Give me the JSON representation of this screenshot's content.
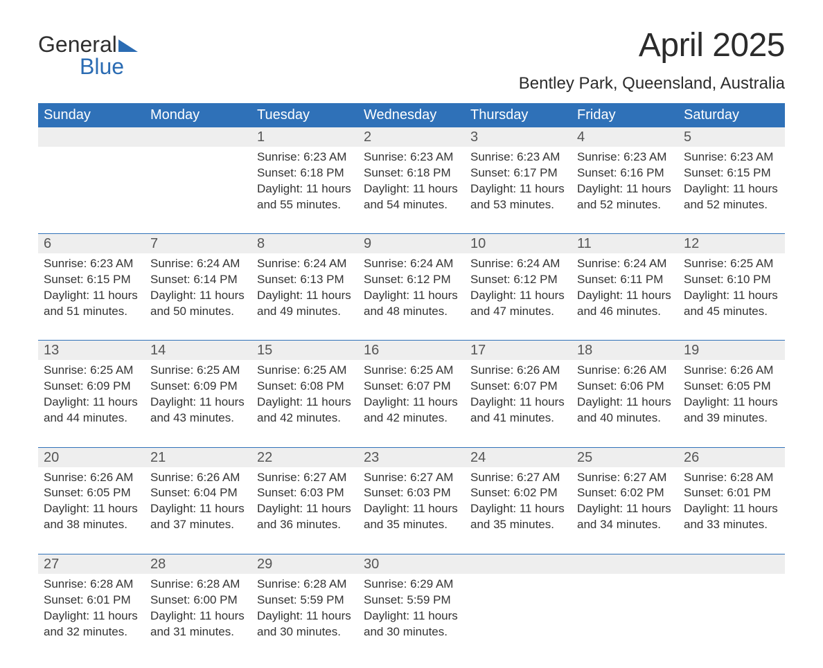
{
  "logo": {
    "word1": "General",
    "word2": "Blue"
  },
  "title": "April 2025",
  "location": "Bentley Park, Queensland, Australia",
  "colors": {
    "header_bg": "#2f71b8",
    "header_fg": "#ffffff",
    "daynum_bg": "#eeeeee",
    "daynum_fg": "#555555",
    "rule": "#2f71b8",
    "text": "#333333",
    "logo_blue": "#2b6cb3"
  },
  "fonts": {
    "title_size_pt": 36,
    "location_size_pt": 18,
    "header_size_pt": 15,
    "daynum_size_pt": 15,
    "details_size_pt": 13
  },
  "weekdays": [
    "Sunday",
    "Monday",
    "Tuesday",
    "Wednesday",
    "Thursday",
    "Friday",
    "Saturday"
  ],
  "labels": {
    "sunrise": "Sunrise:",
    "sunset": "Sunset:",
    "daylight_prefix": "Daylight:"
  },
  "weeks": [
    [
      null,
      null,
      {
        "n": "1",
        "sunrise": "6:23 AM",
        "sunset": "6:18 PM",
        "daylight": "11 hours and 55 minutes."
      },
      {
        "n": "2",
        "sunrise": "6:23 AM",
        "sunset": "6:18 PM",
        "daylight": "11 hours and 54 minutes."
      },
      {
        "n": "3",
        "sunrise": "6:23 AM",
        "sunset": "6:17 PM",
        "daylight": "11 hours and 53 minutes."
      },
      {
        "n": "4",
        "sunrise": "6:23 AM",
        "sunset": "6:16 PM",
        "daylight": "11 hours and 52 minutes."
      },
      {
        "n": "5",
        "sunrise": "6:23 AM",
        "sunset": "6:15 PM",
        "daylight": "11 hours and 52 minutes."
      }
    ],
    [
      {
        "n": "6",
        "sunrise": "6:23 AM",
        "sunset": "6:15 PM",
        "daylight": "11 hours and 51 minutes."
      },
      {
        "n": "7",
        "sunrise": "6:24 AM",
        "sunset": "6:14 PM",
        "daylight": "11 hours and 50 minutes."
      },
      {
        "n": "8",
        "sunrise": "6:24 AM",
        "sunset": "6:13 PM",
        "daylight": "11 hours and 49 minutes."
      },
      {
        "n": "9",
        "sunrise": "6:24 AM",
        "sunset": "6:12 PM",
        "daylight": "11 hours and 48 minutes."
      },
      {
        "n": "10",
        "sunrise": "6:24 AM",
        "sunset": "6:12 PM",
        "daylight": "11 hours and 47 minutes."
      },
      {
        "n": "11",
        "sunrise": "6:24 AM",
        "sunset": "6:11 PM",
        "daylight": "11 hours and 46 minutes."
      },
      {
        "n": "12",
        "sunrise": "6:25 AM",
        "sunset": "6:10 PM",
        "daylight": "11 hours and 45 minutes."
      }
    ],
    [
      {
        "n": "13",
        "sunrise": "6:25 AM",
        "sunset": "6:09 PM",
        "daylight": "11 hours and 44 minutes."
      },
      {
        "n": "14",
        "sunrise": "6:25 AM",
        "sunset": "6:09 PM",
        "daylight": "11 hours and 43 minutes."
      },
      {
        "n": "15",
        "sunrise": "6:25 AM",
        "sunset": "6:08 PM",
        "daylight": "11 hours and 42 minutes."
      },
      {
        "n": "16",
        "sunrise": "6:25 AM",
        "sunset": "6:07 PM",
        "daylight": "11 hours and 42 minutes."
      },
      {
        "n": "17",
        "sunrise": "6:26 AM",
        "sunset": "6:07 PM",
        "daylight": "11 hours and 41 minutes."
      },
      {
        "n": "18",
        "sunrise": "6:26 AM",
        "sunset": "6:06 PM",
        "daylight": "11 hours and 40 minutes."
      },
      {
        "n": "19",
        "sunrise": "6:26 AM",
        "sunset": "6:05 PM",
        "daylight": "11 hours and 39 minutes."
      }
    ],
    [
      {
        "n": "20",
        "sunrise": "6:26 AM",
        "sunset": "6:05 PM",
        "daylight": "11 hours and 38 minutes."
      },
      {
        "n": "21",
        "sunrise": "6:26 AM",
        "sunset": "6:04 PM",
        "daylight": "11 hours and 37 minutes."
      },
      {
        "n": "22",
        "sunrise": "6:27 AM",
        "sunset": "6:03 PM",
        "daylight": "11 hours and 36 minutes."
      },
      {
        "n": "23",
        "sunrise": "6:27 AM",
        "sunset": "6:03 PM",
        "daylight": "11 hours and 35 minutes."
      },
      {
        "n": "24",
        "sunrise": "6:27 AM",
        "sunset": "6:02 PM",
        "daylight": "11 hours and 35 minutes."
      },
      {
        "n": "25",
        "sunrise": "6:27 AM",
        "sunset": "6:02 PM",
        "daylight": "11 hours and 34 minutes."
      },
      {
        "n": "26",
        "sunrise": "6:28 AM",
        "sunset": "6:01 PM",
        "daylight": "11 hours and 33 minutes."
      }
    ],
    [
      {
        "n": "27",
        "sunrise": "6:28 AM",
        "sunset": "6:01 PM",
        "daylight": "11 hours and 32 minutes."
      },
      {
        "n": "28",
        "sunrise": "6:28 AM",
        "sunset": "6:00 PM",
        "daylight": "11 hours and 31 minutes."
      },
      {
        "n": "29",
        "sunrise": "6:28 AM",
        "sunset": "5:59 PM",
        "daylight": "11 hours and 30 minutes."
      },
      {
        "n": "30",
        "sunrise": "6:29 AM",
        "sunset": "5:59 PM",
        "daylight": "11 hours and 30 minutes."
      },
      null,
      null,
      null
    ]
  ]
}
